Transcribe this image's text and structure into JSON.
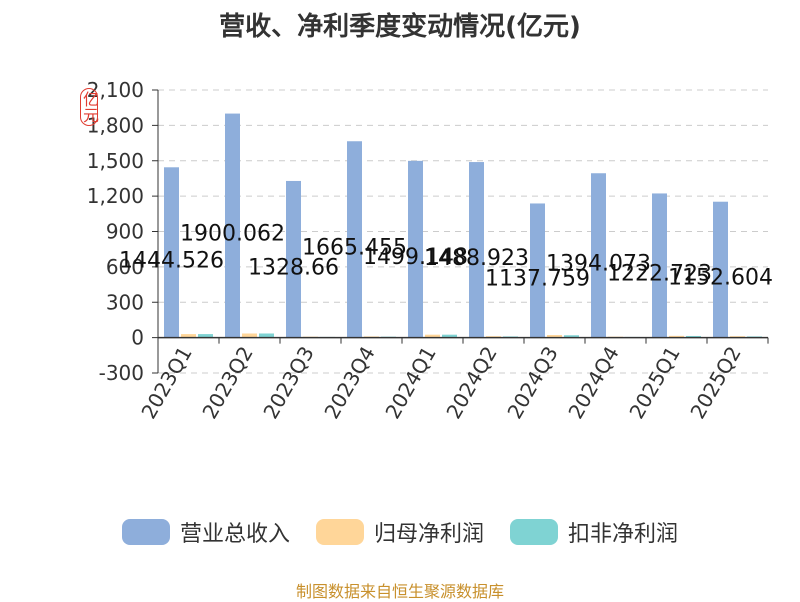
{
  "title": "营收、净利季度变动情况(亿元)",
  "unit_label": "亿元",
  "source": "制图数据来自恒生聚源数据库",
  "colors": {
    "revenue": "#8eaedb",
    "net_profit": "#ffd699",
    "deducted_profit": "#7fd3d3",
    "grid": "#cccccc",
    "axis": "#333333"
  },
  "legend": [
    {
      "label": "营业总收入",
      "color": "#8eaedb"
    },
    {
      "label": "归母净利润",
      "color": "#ffd699"
    },
    {
      "label": "扣非净利润",
      "color": "#7fd3d3"
    }
  ],
  "chart_data": {
    "type": "bar",
    "categories": [
      "2023Q1",
      "2023Q2",
      "2023Q3",
      "2023Q4",
      "2024Q1",
      "2024Q2",
      "2024Q3",
      "2024Q4",
      "2025Q1",
      "2025Q2"
    ],
    "series": [
      {
        "name": "营业总收入",
        "values": [
          1444.526,
          1900.062,
          1328.66,
          1665.455,
          1499.148,
          1488.923,
          1137.759,
          1394.073,
          1222.723,
          1152.604
        ]
      },
      {
        "name": "归母净利润",
        "values": [
          30,
          35,
          8,
          10,
          25,
          12,
          22,
          8,
          15,
          12
        ]
      },
      {
        "name": "扣非净利润",
        "values": [
          30,
          35,
          6,
          8,
          25,
          10,
          20,
          6,
          14,
          10
        ]
      }
    ],
    "data_labels": [
      "1444.526",
      "1900.062",
      "1328.66",
      "1665.455",
      "1499.148",
      "1488.923",
      "1137.759",
      "1394.073",
      "1222.723",
      "1152.604"
    ],
    "yticks": [
      "-300",
      "0",
      "300",
      "600",
      "900",
      "1,200",
      "1,500",
      "1,800",
      "2,100"
    ],
    "ylim": [
      -300,
      2100
    ],
    "grid": true,
    "legend_position": "bottom"
  }
}
